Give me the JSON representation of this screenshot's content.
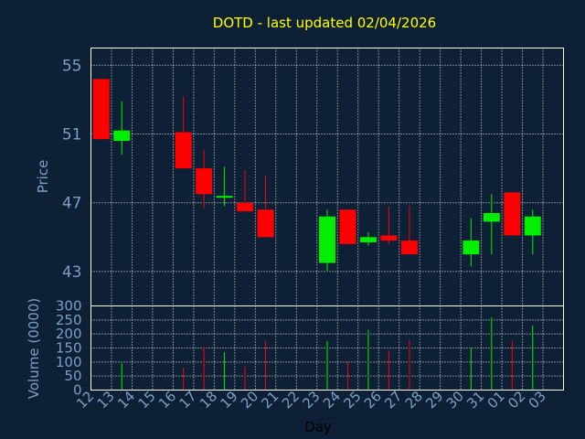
{
  "chart_data": {
    "type": "candlestick",
    "title": "DOTD - last updated 02/04/2026",
    "xlabel": "Day",
    "colors": {
      "background": "#0d2035",
      "title": "#ffff00",
      "axis_text": "#7d9fc5",
      "up": "#00ee00",
      "down": "#ff0000",
      "frame": "#ffffff"
    },
    "x_labels": [
      "12",
      "13",
      "14",
      "15",
      "16",
      "17",
      "18",
      "19",
      "20",
      "21",
      "22",
      "23",
      "24",
      "25",
      "26",
      "27",
      "28",
      "29",
      "30",
      "31",
      "01",
      "02",
      "03"
    ],
    "price_panel": {
      "ylabel": "Price",
      "ylim": [
        41,
        56
      ],
      "yticks": [
        43,
        47,
        51,
        55
      ],
      "grid": true
    },
    "volume_panel": {
      "ylabel": "Volume (0000)",
      "ylim": [
        0,
        300
      ],
      "yticks": [
        0,
        50,
        100,
        150,
        200,
        250,
        300
      ],
      "grid": true
    },
    "candles": [
      {
        "day": "12",
        "open": 54.2,
        "high": 54.2,
        "low": 50.7,
        "close": 50.7,
        "volume": 0
      },
      {
        "day": "13",
        "open": 50.6,
        "high": 52.9,
        "low": 49.8,
        "close": 51.2,
        "volume": 95
      },
      {
        "day": "16",
        "open": 51.1,
        "high": 53.2,
        "low": 49.0,
        "close": 49.0,
        "volume": 80
      },
      {
        "day": "17",
        "open": 49.0,
        "high": 50.1,
        "low": 46.7,
        "close": 47.5,
        "volume": 155
      },
      {
        "day": "18",
        "open": 47.3,
        "high": 49.1,
        "low": 46.8,
        "close": 47.4,
        "volume": 135
      },
      {
        "day": "19",
        "open": 47.0,
        "high": 48.9,
        "low": 46.5,
        "close": 46.5,
        "volume": 85
      },
      {
        "day": "20",
        "open": 46.6,
        "high": 48.6,
        "low": 45.0,
        "close": 45.0,
        "volume": 175
      },
      {
        "day": "23",
        "open": 43.5,
        "high": 46.6,
        "low": 43.0,
        "close": 46.2,
        "volume": 175
      },
      {
        "day": "24",
        "open": 46.6,
        "high": 46.6,
        "low": 44.6,
        "close": 44.6,
        "volume": 100
      },
      {
        "day": "25",
        "open": 44.7,
        "high": 45.3,
        "low": 44.5,
        "close": 45.0,
        "volume": 215
      },
      {
        "day": "26",
        "open": 45.1,
        "high": 46.8,
        "low": 44.6,
        "close": 44.8,
        "volume": 140
      },
      {
        "day": "27",
        "open": 44.8,
        "high": 46.8,
        "low": 44.0,
        "close": 44.0,
        "volume": 180
      },
      {
        "day": "30",
        "open": 44.0,
        "high": 46.1,
        "low": 43.3,
        "close": 44.8,
        "volume": 150
      },
      {
        "day": "31",
        "open": 45.9,
        "high": 47.5,
        "low": 44.0,
        "close": 46.4,
        "volume": 260
      },
      {
        "day": "01",
        "open": 47.6,
        "high": 47.6,
        "low": 45.1,
        "close": 45.1,
        "volume": 175
      },
      {
        "day": "02",
        "open": 45.1,
        "high": 46.6,
        "low": 44.0,
        "close": 46.2,
        "volume": 230
      }
    ]
  }
}
